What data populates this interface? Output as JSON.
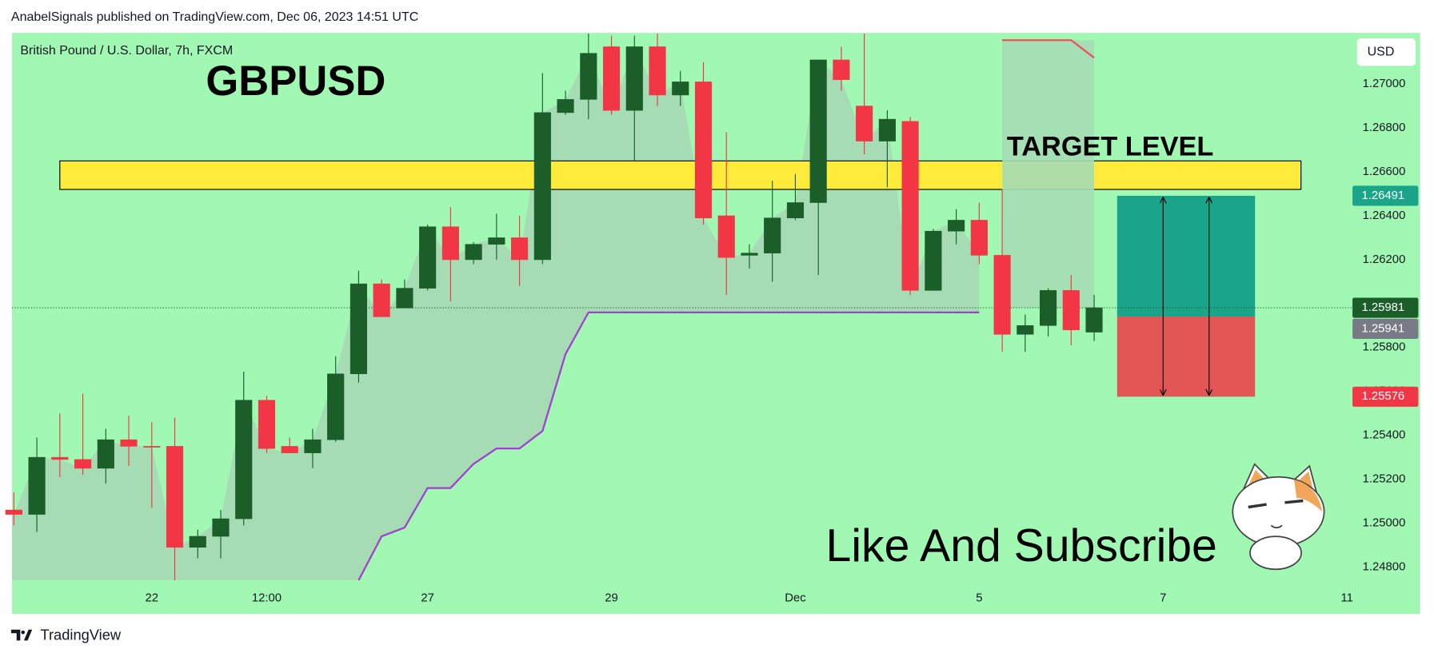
{
  "header": "AnabelSignals published on TradingView.com, Dec 06, 2023 14:51 UTC",
  "footer": "TradingView",
  "chart_data": {
    "type": "candlestick",
    "title": "GBPUSD",
    "subtitle": "British Pound / U.S. Dollar, 7h, FXCM",
    "currency": "USD",
    "annotations": [
      "TARGET LEVEL",
      "Like And Subscribe"
    ],
    "open": [
      1.2506,
      1.2504,
      1.253,
      1.2529,
      1.2525,
      1.2538,
      1.2535,
      1.2535,
      1.2489,
      1.2494,
      1.2502,
      1.2556,
      1.2535,
      1.2532,
      1.2538,
      1.2568,
      1.2609,
      1.2598,
      1.2607,
      1.2635,
      1.262,
      1.2627,
      1.263,
      1.262,
      1.2687,
      1.2693,
      1.2717,
      1.2688,
      1.2717,
      1.2695,
      1.2701,
      1.264,
      1.2622,
      1.2623,
      1.2639,
      1.2646,
      1.2711,
      1.269,
      1.2674,
      1.2683,
      1.2606,
      1.2633,
      1.2638,
      1.2622,
      1.2586,
      1.259,
      1.2606,
      1.2587
    ],
    "high": [
      1.2514,
      1.2539,
      1.255,
      1.2559,
      1.2543,
      1.2549,
      1.2546,
      1.2548,
      1.2497,
      1.2506,
      1.2569,
      1.2558,
      1.2539,
      1.2543,
      1.2576,
      1.2615,
      1.2611,
      1.2611,
      1.2636,
      1.2644,
      1.2628,
      1.2641,
      1.264,
      1.2705,
      1.2697,
      1.2723,
      1.2722,
      1.2722,
      1.2723,
      1.2706,
      1.271,
      1.2678,
      1.2627,
      1.2656,
      1.2659,
      1.2711,
      1.2717,
      1.2723,
      1.2688,
      1.2685,
      1.2634,
      1.2643,
      1.2646,
      1.2652,
      1.2595,
      1.2607,
      1.2613,
      1.2604
    ],
    "low": [
      1.2499,
      1.2496,
      1.2521,
      1.2522,
      1.2518,
      1.2526,
      1.2507,
      1.2474,
      1.2484,
      1.2484,
      1.2499,
      1.2532,
      1.2532,
      1.2525,
      1.2537,
      1.2564,
      1.2594,
      1.2598,
      1.2606,
      1.2601,
      1.2618,
      1.262,
      1.2608,
      1.2618,
      1.2686,
      1.2684,
      1.2686,
      1.2665,
      1.269,
      1.269,
      1.2636,
      1.2604,
      1.2616,
      1.261,
      1.2638,
      1.2613,
      1.2697,
      1.2668,
      1.2653,
      1.2604,
      1.2606,
      1.2627,
      1.2618,
      1.2578,
      1.2578,
      1.2585,
      1.2581,
      1.2583
    ],
    "close": [
      1.2504,
      1.253,
      1.2529,
      1.2525,
      1.2538,
      1.2535,
      1.2535,
      1.2489,
      1.2494,
      1.2502,
      1.2556,
      1.2534,
      1.2532,
      1.2538,
      1.2568,
      1.2609,
      1.2594,
      1.2607,
      1.2635,
      1.262,
      1.2627,
      1.263,
      1.262,
      1.2687,
      1.2693,
      1.2714,
      1.2688,
      1.2717,
      1.2695,
      1.2701,
      1.2639,
      1.2621,
      1.2623,
      1.2639,
      1.2646,
      1.2711,
      1.2702,
      1.2674,
      1.2684,
      1.2606,
      1.2633,
      1.2638,
      1.2622,
      1.2586,
      1.259,
      1.2606,
      1.2588,
      1.25981
    ],
    "up_color": "#1b5e2a",
    "down_color": "#f23645",
    "area_color": "#a5dcb4",
    "background": "#a1f8b3",
    "xlim": [
      -0.08,
      58.2
    ],
    "xticks": [
      {
        "value": 6,
        "label": "22"
      },
      {
        "value": 11,
        "label": "12:00"
      },
      {
        "value": 18,
        "label": "27"
      },
      {
        "value": 26,
        "label": "29"
      },
      {
        "value": 34,
        "label": "Dec"
      },
      {
        "value": 42,
        "label": "5"
      },
      {
        "value": 50,
        "label": "7"
      },
      {
        "value": 58,
        "label": "11"
      }
    ],
    "ylim": [
      1.2474,
      1.27233
    ],
    "yticks": [
      {
        "value": 1.248,
        "label": "1.24800"
      },
      {
        "value": 1.25,
        "label": "1.25000"
      },
      {
        "value": 1.252,
        "label": "1.25200"
      },
      {
        "value": 1.254,
        "label": "1.25400"
      },
      {
        "value": 1.256,
        "label": "1.25600"
      },
      {
        "value": 1.258,
        "label": "1.25800"
      },
      {
        "value": 1.26,
        "label": "1.26000"
      },
      {
        "value": 1.262,
        "label": "1.26200"
      },
      {
        "value": 1.264,
        "label": "1.26400"
      },
      {
        "value": 1.266,
        "label": "1.26600"
      },
      {
        "value": 1.268,
        "label": "1.26800"
      },
      {
        "value": 1.27,
        "label": "1.27000"
      }
    ],
    "grid": false,
    "lines": [
      {
        "color": "#a23fd0",
        "values": [
          null,
          null,
          null,
          null,
          null,
          null,
          null,
          null,
          null,
          null,
          null,
          null,
          null,
          null,
          null,
          1.2474,
          1.2494,
          1.2498,
          1.2516,
          1.2516,
          1.2527,
          1.2534,
          1.2534,
          1.2542,
          1.2577,
          1.2596,
          1.2596,
          1.2596,
          1.2596,
          1.2596,
          1.2596,
          1.2596,
          1.2596,
          1.2596,
          1.2596,
          1.2596,
          1.2596,
          1.2596,
          1.2596,
          1.2596,
          1.2596,
          1.2596,
          1.2596,
          null,
          null,
          null,
          null,
          null
        ]
      },
      {
        "color": "#f0505c",
        "values": [
          null,
          null,
          null,
          null,
          null,
          null,
          null,
          null,
          null,
          null,
          null,
          null,
          null,
          null,
          null,
          null,
          null,
          null,
          null,
          null,
          null,
          null,
          null,
          null,
          null,
          null,
          null,
          null,
          null,
          null,
          null,
          null,
          null,
          null,
          null,
          null,
          null,
          null,
          null,
          null,
          null,
          null,
          null,
          1.272,
          1.272,
          1.272,
          1.272,
          1.2712
        ]
      }
    ],
    "zone": [
      1.2652,
      1.2665
    ],
    "zone_color": "#ffeb3b",
    "position": {
      "target": 1.26491,
      "entry": 1.25941,
      "stop": 1.25576,
      "target_color": "#1aa58a",
      "stop_color": "#e25656",
      "entry_color": "#787b86"
    }
  }
}
